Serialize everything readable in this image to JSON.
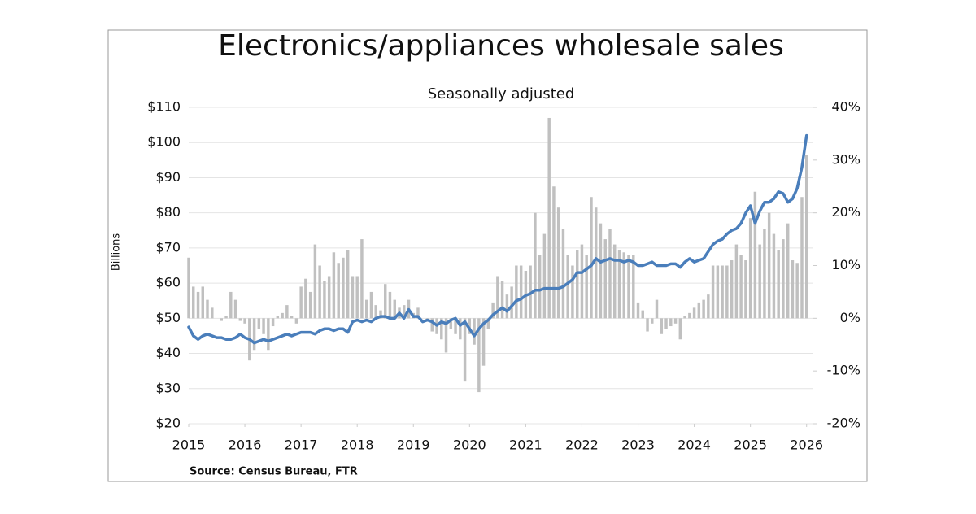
{
  "chart_data": {
    "type": "bar-line",
    "title": "Electronics/appliances wholesale sales",
    "subtitle": "Seasonally adjusted",
    "y_label": "Billions",
    "source": "Source: Census Bureau, FTR",
    "grid": true,
    "xlim": [
      2015,
      2026.12
    ],
    "xticks": [
      2015,
      2016,
      2017,
      2018,
      2019,
      2020,
      2021,
      2022,
      2023,
      2024,
      2025,
      2026
    ],
    "ylim": [
      20,
      110
    ],
    "yticks": [
      {
        "value": 20,
        "label": "$20"
      },
      {
        "value": 30,
        "label": "$30"
      },
      {
        "value": 40,
        "label": "$40"
      },
      {
        "value": 50,
        "label": "$50"
      },
      {
        "value": 60,
        "label": "$60"
      },
      {
        "value": 70,
        "label": "$70"
      },
      {
        "value": 80,
        "label": "$80"
      },
      {
        "value": 90,
        "label": "$90"
      },
      {
        "value": 100,
        "label": "$100"
      },
      {
        "value": 110,
        "label": "$110"
      }
    ],
    "y2lim": [
      -20,
      40
    ],
    "y2ticks": [
      {
        "value": -20,
        "label": "-20%"
      },
      {
        "value": -10,
        "label": "-10%"
      },
      {
        "value": 0,
        "label": "0%"
      },
      {
        "value": 10,
        "label": "10%"
      },
      {
        "value": 20,
        "label": "20%"
      },
      {
        "value": 30,
        "label": "30%"
      },
      {
        "value": 40,
        "label": "40%"
      }
    ],
    "x": [
      2015,
      2015.083,
      2015.167,
      2015.25,
      2015.333,
      2015.417,
      2015.5,
      2015.583,
      2015.667,
      2015.75,
      2015.833,
      2015.917,
      2016,
      2016.083,
      2016.167,
      2016.25,
      2016.333,
      2016.417,
      2016.5,
      2016.583,
      2016.667,
      2016.75,
      2016.833,
      2016.917,
      2017,
      2017.083,
      2017.167,
      2017.25,
      2017.333,
      2017.417,
      2017.5,
      2017.583,
      2017.667,
      2017.75,
      2017.833,
      2017.917,
      2018,
      2018.083,
      2018.167,
      2018.25,
      2018.333,
      2018.417,
      2018.5,
      2018.583,
      2018.667,
      2018.75,
      2018.833,
      2018.917,
      2019,
      2019.083,
      2019.167,
      2019.25,
      2019.333,
      2019.417,
      2019.5,
      2019.583,
      2019.667,
      2019.75,
      2019.833,
      2019.917,
      2020,
      2020.083,
      2020.167,
      2020.25,
      2020.333,
      2020.417,
      2020.5,
      2020.583,
      2020.667,
      2020.75,
      2020.833,
      2020.917,
      2021,
      2021.083,
      2021.167,
      2021.25,
      2021.333,
      2021.417,
      2021.5,
      2021.583,
      2021.667,
      2021.75,
      2021.833,
      2021.917,
      2022,
      2022.083,
      2022.167,
      2022.25,
      2022.333,
      2022.417,
      2022.5,
      2022.583,
      2022.667,
      2022.75,
      2022.833,
      2022.917,
      2023,
      2023.083,
      2023.167,
      2023.25,
      2023.333,
      2023.417,
      2023.5,
      2023.583,
      2023.667,
      2023.75,
      2023.833,
      2023.917,
      2024,
      2024.083,
      2024.167,
      2024.25,
      2024.333,
      2024.417,
      2024.5,
      2024.583,
      2024.667,
      2024.75,
      2024.833,
      2024.917,
      2025,
      2025.083,
      2025.167,
      2025.25,
      2025.333,
      2025.417,
      2025.5,
      2025.583,
      2025.667,
      2025.75,
      2025.833,
      2025.917,
      2026
    ],
    "series": [
      {
        "type": "line",
        "color": "#4a7ebb",
        "values": [
          47.5,
          45,
          44,
          45,
          45.5,
          45,
          44.5,
          44.5,
          44,
          44,
          44.5,
          45.5,
          44.5,
          44,
          43,
          43.5,
          44,
          43.5,
          44,
          44.5,
          45,
          45.5,
          45,
          45.5,
          46,
          46,
          46,
          45.5,
          46.5,
          47,
          47,
          46.5,
          47,
          47,
          46,
          49,
          49.5,
          49,
          49.5,
          49,
          50,
          50.5,
          50.5,
          50,
          50,
          51.5,
          50,
          52.5,
          50.5,
          50.5,
          49,
          49.5,
          49,
          48,
          49,
          48.5,
          49.5,
          50,
          48,
          49,
          47,
          45,
          47,
          48.5,
          49.5,
          51,
          52,
          53,
          52,
          53.5,
          55,
          55.5,
          56.5,
          57,
          58,
          58,
          58.5,
          58.5,
          58.5,
          58.5,
          59,
          60,
          61,
          63,
          63,
          64,
          65,
          67,
          66,
          66.5,
          67,
          66.5,
          66.5,
          66,
          66.5,
          66,
          65,
          65,
          65.5,
          66,
          65,
          65,
          65,
          65.5,
          65.5,
          64.5,
          66,
          67,
          66,
          66.5,
          67,
          69,
          71,
          72,
          72.5,
          74,
          75,
          75.5,
          77,
          80,
          82,
          77,
          80.5,
          83,
          83,
          84,
          86,
          85.5,
          83,
          84,
          87,
          93,
          102
        ]
      },
      {
        "type": "bar",
        "axis": "y2",
        "color": "#c0c0c0",
        "values": [
          11.5,
          6,
          5,
          6,
          3.5,
          2,
          0,
          -0.5,
          0.5,
          5,
          3.5,
          -0.5,
          -1,
          -8,
          -6,
          -2,
          -3,
          -6,
          -1.5,
          0.5,
          1,
          2.5,
          0.5,
          -1,
          6,
          7.5,
          5,
          14,
          10,
          7,
          8,
          12.5,
          10.5,
          11.5,
          13,
          8,
          8,
          15,
          3.5,
          5,
          2.5,
          1.5,
          6.5,
          5,
          3.5,
          2,
          2.5,
          3.5,
          1,
          2,
          0,
          -0.5,
          -2.5,
          -3,
          -4,
          -6.5,
          -2,
          -3,
          -4,
          -12,
          -3,
          -5,
          -14,
          -9,
          -2,
          3,
          8,
          7,
          4.5,
          6,
          10,
          10,
          9,
          10,
          20,
          12,
          16,
          38,
          25,
          21,
          17,
          12,
          10,
          13,
          14,
          12,
          23,
          21,
          18,
          15,
          17,
          14,
          13,
          12.5,
          12,
          12,
          3,
          1.5,
          -2.5,
          -1,
          3.5,
          -3,
          -2,
          -1.5,
          -1,
          -4,
          0.5,
          1,
          2,
          3,
          3.5,
          4.5,
          10,
          10,
          10,
          10,
          11,
          14,
          12,
          11,
          19,
          24,
          14,
          17,
          20,
          16,
          13,
          15,
          18,
          11,
          10.5,
          23,
          31
        ]
      }
    ]
  }
}
